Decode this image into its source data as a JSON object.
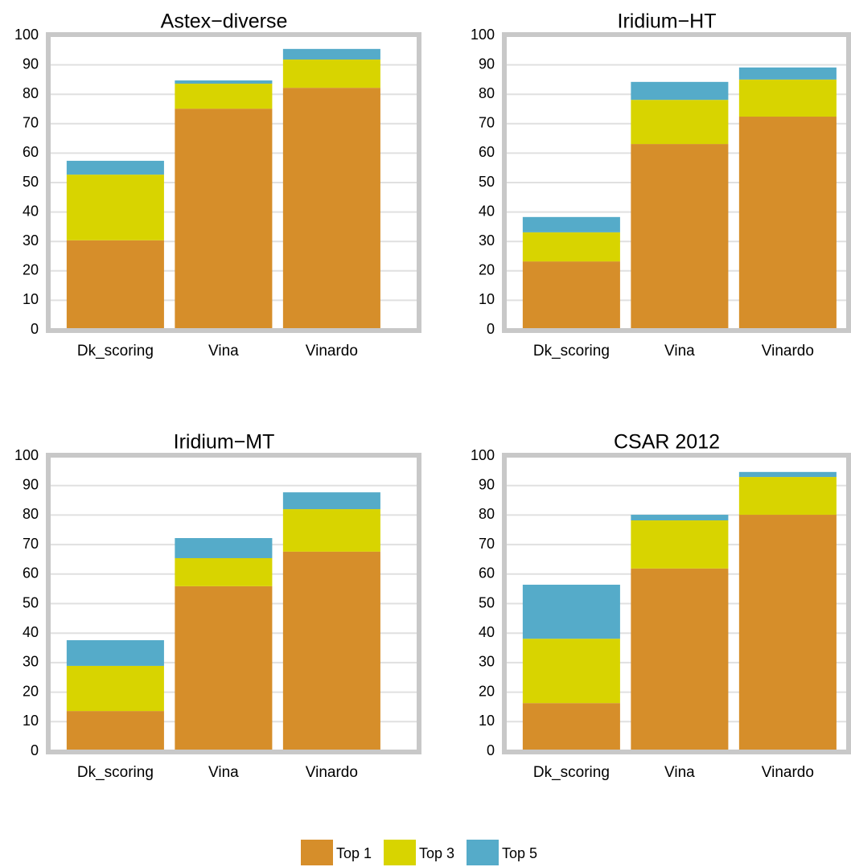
{
  "chart_data": [
    {
      "type": "bar",
      "stacked": true,
      "title": "Astex−diverse",
      "categories": [
        "Dk_scoring",
        "Vina",
        "Vinardo"
      ],
      "series": [
        {
          "values": [
            30.4,
            75.1,
            82.2
          ]
        },
        {
          "values": [
            22.3,
            8.5,
            9.6
          ]
        },
        {
          "values": [
            4.7,
            1.1,
            3.6
          ]
        }
      ],
      "ylim": [
        0,
        100
      ],
      "yticks": [
        0,
        10,
        20,
        30,
        40,
        50,
        60,
        70,
        80,
        90,
        100
      ],
      "grid": true
    },
    {
      "type": "bar",
      "stacked": true,
      "title": "Iridium−HT",
      "categories": [
        "Dk_scoring",
        "Vina",
        "Vinardo"
      ],
      "series": [
        {
          "values": [
            23.2,
            63.1,
            72.4
          ]
        },
        {
          "values": [
            9.9,
            15.0,
            12.6
          ]
        },
        {
          "values": [
            5.2,
            6.1,
            4.1
          ]
        }
      ],
      "ylim": [
        0,
        100
      ],
      "yticks": [
        0,
        10,
        20,
        30,
        40,
        50,
        60,
        70,
        80,
        90,
        100
      ],
      "grid": true
    },
    {
      "type": "bar",
      "stacked": true,
      "title": "Iridium−MT",
      "categories": [
        "Dk_scoring",
        "Vina",
        "Vinardo"
      ],
      "series": [
        {
          "values": [
            13.6,
            55.9,
            67.6
          ]
        },
        {
          "values": [
            15.3,
            9.5,
            14.4
          ]
        },
        {
          "values": [
            8.7,
            6.8,
            5.7
          ]
        }
      ],
      "ylim": [
        0,
        100
      ],
      "yticks": [
        0,
        10,
        20,
        30,
        40,
        50,
        60,
        70,
        80,
        90,
        100
      ],
      "grid": true
    },
    {
      "type": "bar",
      "stacked": true,
      "title": "CSAR 2012",
      "categories": [
        "Dk_scoring",
        "Vina",
        "Vinardo"
      ],
      "series": [
        {
          "values": [
            16.3,
            61.9,
            80.1
          ]
        },
        {
          "values": [
            21.8,
            16.3,
            12.8
          ]
        },
        {
          "values": [
            18.3,
            1.9,
            1.7
          ]
        }
      ],
      "ylim": [
        0,
        100
      ],
      "yticks": [
        0,
        10,
        20,
        30,
        40,
        50,
        60,
        70,
        80,
        90,
        100
      ],
      "grid": true
    }
  ],
  "legend": {
    "series": [
      {
        "name": "Top 1",
        "color": "#d68e2a"
      },
      {
        "name": "Top 3",
        "color": "#d8d400"
      },
      {
        "name": "Top 5",
        "color": "#55abc9"
      }
    ]
  }
}
